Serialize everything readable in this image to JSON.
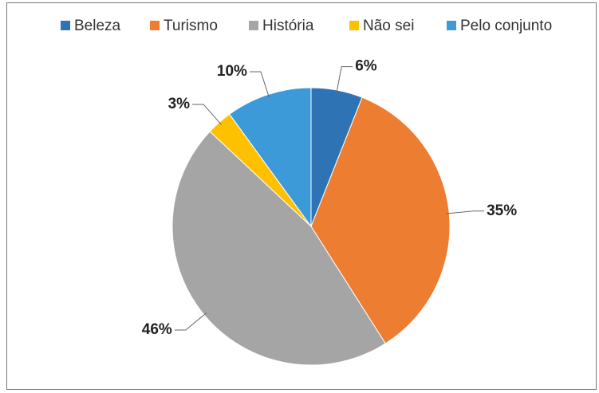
{
  "chart_data": {
    "type": "pie",
    "categories": [
      "Beleza",
      "Turismo",
      "História",
      "Não sei",
      "Pelo conjunto"
    ],
    "values": [
      6,
      35,
      46,
      3,
      10
    ],
    "value_labels": [
      "6%",
      "35%",
      "46%",
      "3%",
      "10%"
    ],
    "colors": [
      "#2e74b5",
      "#ed7d31",
      "#a5a5a5",
      "#ffc000",
      "#3d9ad8"
    ],
    "legend": "top"
  }
}
